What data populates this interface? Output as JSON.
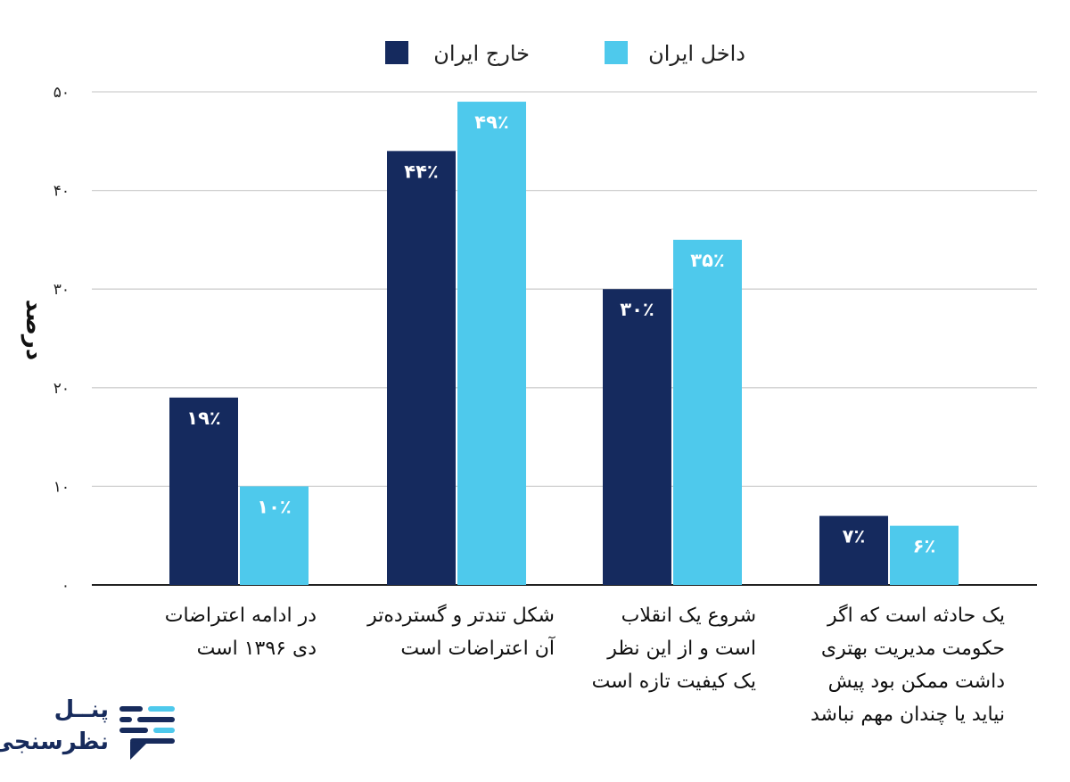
{
  "chart_data": {
    "type": "bar",
    "ylabel": "درصد",
    "ylim": [
      0,
      50
    ],
    "yticks": [
      0,
      10,
      20,
      30,
      40,
      50
    ],
    "ytick_labels": [
      "۰",
      "۱۰",
      "۲۰",
      "۳۰",
      "۴۰",
      "۵۰"
    ],
    "grid": true,
    "legend_position": "top-center",
    "categories": [
      [
        "در ادامه اعتراضات",
        "دی ۱۳۹۶ است"
      ],
      [
        "شکل تندتر و گسترده‌تر",
        "آن اعتراضات است"
      ],
      [
        "شروع یک انقلاب",
        "است و از این نظر",
        "یک کیفیت تازه است"
      ],
      [
        "یک حادثه است که اگر",
        "حکومت مدیریت بهتری",
        "داشت ممکن بود پیش",
        "نیاید یا چندان مهم نباشد"
      ]
    ],
    "series": [
      {
        "name": "خارج ایران",
        "color": "#152a5e",
        "values": [
          19,
          44,
          30,
          7
        ],
        "labels": [
          "۱۹٪",
          "۴۴٪",
          "۳۰٪",
          "۷٪"
        ]
      },
      {
        "name": "داخل ایران",
        "color": "#4ec9ec",
        "values": [
          10,
          49,
          35,
          6
        ],
        "labels": [
          "۱۰٪",
          "۴۹٪",
          "۳۵٪",
          "۶٪"
        ]
      }
    ]
  },
  "logo": {
    "line1": "پنــل",
    "line2": "نظرسنجی",
    "colors": {
      "dark": "#172b5c",
      "light": "#4ec9ec"
    }
  }
}
